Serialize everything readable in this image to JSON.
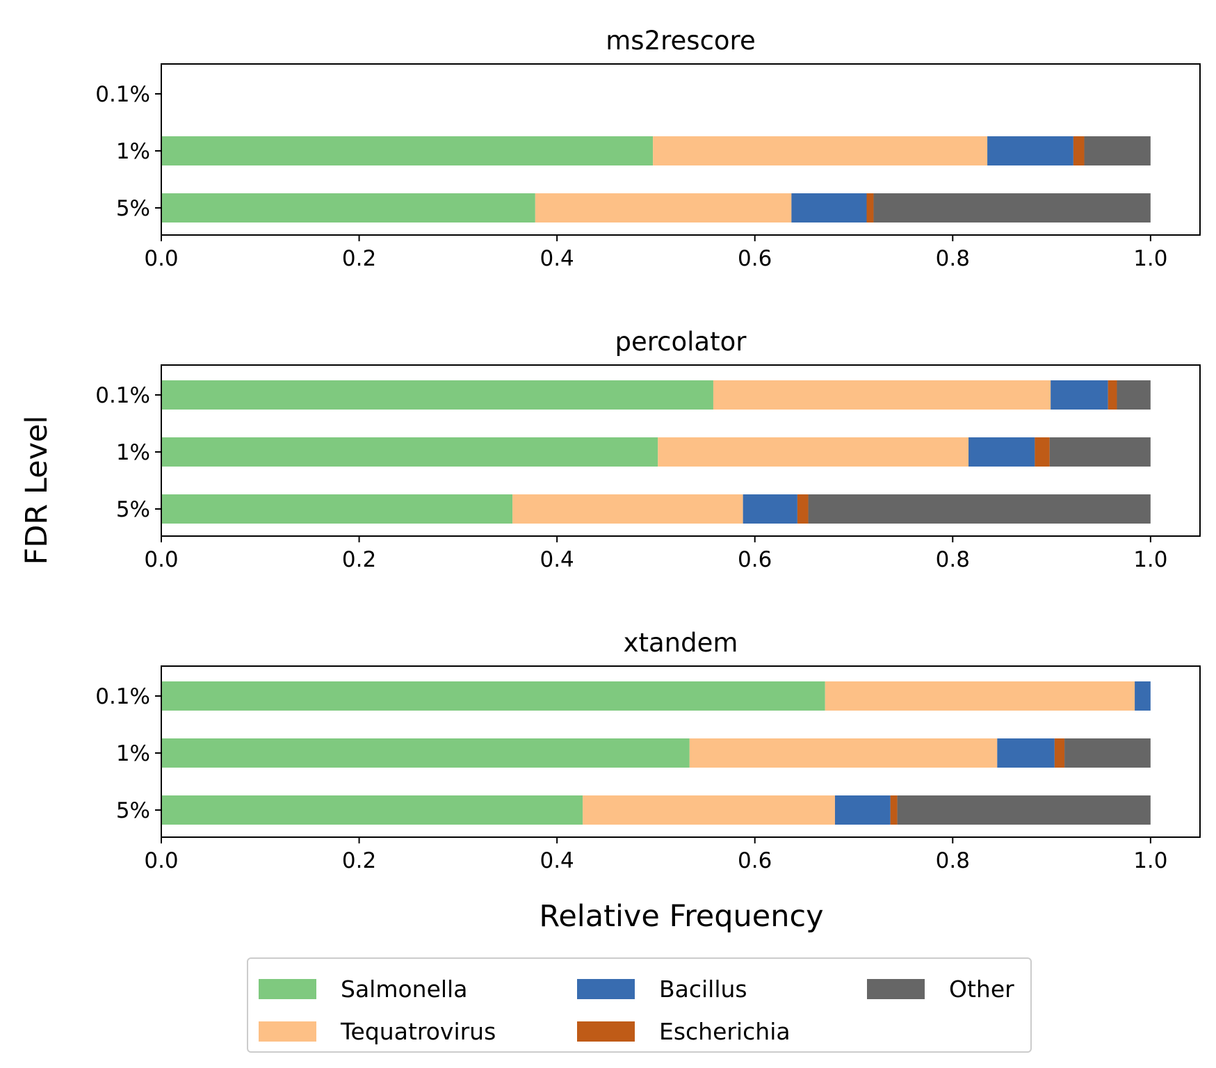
{
  "figure": {
    "ylabel": "FDR Level",
    "xlabel": "Relative Frequency"
  },
  "chart_data": [
    {
      "type": "bar",
      "orientation": "horizontal",
      "stacked": true,
      "title": "ms2rescore",
      "categories": [
        "0.1%",
        "1%",
        "5%"
      ],
      "xlim": [
        0,
        1.05
      ],
      "xticks": [
        "0.0",
        "0.2",
        "0.4",
        "0.6",
        "0.8",
        "1.0"
      ],
      "series": [
        {
          "name": "Salmonella",
          "values": [
            0,
            0.497,
            0.378
          ]
        },
        {
          "name": "Tequatrovirus",
          "values": [
            0,
            0.338,
            0.259
          ]
        },
        {
          "name": "Bacillus",
          "values": [
            0,
            0.087,
            0.076
          ]
        },
        {
          "name": "Escherichia",
          "values": [
            0,
            0.011,
            0.007
          ]
        },
        {
          "name": "Other",
          "values": [
            0,
            0.067,
            0.28
          ]
        }
      ]
    },
    {
      "type": "bar",
      "orientation": "horizontal",
      "stacked": true,
      "title": "percolator",
      "categories": [
        "0.1%",
        "1%",
        "5%"
      ],
      "xlim": [
        0,
        1.05
      ],
      "xticks": [
        "0.0",
        "0.2",
        "0.4",
        "0.6",
        "0.8",
        "1.0"
      ],
      "series": [
        {
          "name": "Salmonella",
          "values": [
            0.558,
            0.502,
            0.355
          ]
        },
        {
          "name": "Tequatrovirus",
          "values": [
            0.341,
            0.314,
            0.233
          ]
        },
        {
          "name": "Bacillus",
          "values": [
            0.058,
            0.067,
            0.055
          ]
        },
        {
          "name": "Escherichia",
          "values": [
            0.009,
            0.015,
            0.011
          ]
        },
        {
          "name": "Other",
          "values": [
            0.034,
            0.102,
            0.346
          ]
        }
      ]
    },
    {
      "type": "bar",
      "orientation": "horizontal",
      "stacked": true,
      "title": "xtandem",
      "categories": [
        "0.1%",
        "1%",
        "5%"
      ],
      "xlim": [
        0,
        1.05
      ],
      "xticks": [
        "0.0",
        "0.2",
        "0.4",
        "0.6",
        "0.8",
        "1.0"
      ],
      "series": [
        {
          "name": "Salmonella",
          "values": [
            0.671,
            0.534,
            0.426
          ]
        },
        {
          "name": "Tequatrovirus",
          "values": [
            0.313,
            0.311,
            0.255
          ]
        },
        {
          "name": "Bacillus",
          "values": [
            0.016,
            0.058,
            0.056
          ]
        },
        {
          "name": "Escherichia",
          "values": [
            0,
            0.01,
            0.007
          ]
        },
        {
          "name": "Other",
          "values": [
            0,
            0.087,
            0.256
          ]
        }
      ]
    }
  ],
  "legend": {
    "placement": "bottom-center",
    "items": [
      {
        "name": "Salmonella",
        "color": "#7fc97f"
      },
      {
        "name": "Tequatrovirus",
        "color": "#fdc086"
      },
      {
        "name": "Bacillus",
        "color": "#386cb0"
      },
      {
        "name": "Escherichia",
        "color": "#bf5b17"
      },
      {
        "name": "Other",
        "color": "#666666"
      }
    ]
  }
}
